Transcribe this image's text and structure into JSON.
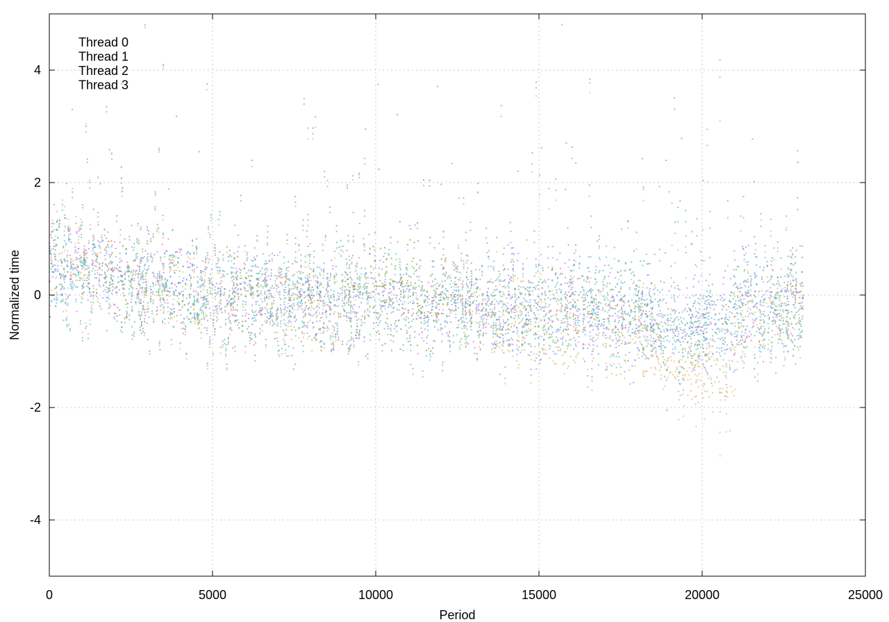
{
  "chart_data": {
    "type": "scatter",
    "title": "",
    "xlabel": "Period",
    "ylabel": "Normalized time",
    "xlim": [
      0,
      25000
    ],
    "ylim": [
      -5,
      5
    ],
    "xticks": [
      0,
      5000,
      10000,
      15000,
      20000,
      25000
    ],
    "yticks": [
      -4,
      -2,
      0,
      2,
      4
    ],
    "grid": true,
    "legend": "top-left",
    "x_extent": [
      0,
      23100
    ],
    "series": [
      {
        "name": "Thread 0",
        "color": "#9b59d6",
        "trend": [
          [
            0,
            0.6
          ],
          [
            2000,
            0.3
          ],
          [
            4000,
            0.1
          ],
          [
            6000,
            0.0
          ],
          [
            8000,
            -0.1
          ],
          [
            10000,
            0.0
          ],
          [
            12000,
            -0.1
          ],
          [
            14000,
            -0.3
          ],
          [
            16000,
            -0.2
          ],
          [
            18000,
            -0.4
          ],
          [
            19500,
            -0.6
          ],
          [
            21000,
            -0.3
          ],
          [
            23000,
            -0.2
          ]
        ]
      },
      {
        "name": "Thread 1",
        "color": "#2aa57a",
        "trend": [
          [
            0,
            0.5
          ],
          [
            2000,
            0.3
          ],
          [
            4000,
            0.1
          ],
          [
            6000,
            0.0
          ],
          [
            8000,
            0.0
          ],
          [
            10000,
            0.0
          ],
          [
            12000,
            -0.1
          ],
          [
            14000,
            -0.2
          ],
          [
            16000,
            -0.1
          ],
          [
            18000,
            -0.2
          ],
          [
            19500,
            -0.7
          ],
          [
            21000,
            -0.2
          ],
          [
            23000,
            -0.1
          ]
        ]
      },
      {
        "name": "Thread 2",
        "color": "#3ba3e0",
        "trend": [
          [
            0,
            0.5
          ],
          [
            2000,
            0.2
          ],
          [
            4000,
            0.1
          ],
          [
            6000,
            -0.1
          ],
          [
            8000,
            -0.1
          ],
          [
            10000,
            -0.1
          ],
          [
            12000,
            -0.2
          ],
          [
            14000,
            -0.4
          ],
          [
            16000,
            -0.3
          ],
          [
            18000,
            -0.4
          ],
          [
            19500,
            -0.9
          ],
          [
            21000,
            -0.6
          ],
          [
            23000,
            -0.3
          ]
        ]
      },
      {
        "name": "Thread 3",
        "color": "#d9a62f",
        "trend": [
          [
            0,
            0.7
          ],
          [
            2000,
            0.3
          ],
          [
            4000,
            0.0
          ],
          [
            6000,
            -0.1
          ],
          [
            8000,
            -0.2
          ],
          [
            10000,
            0.0
          ],
          [
            12000,
            -0.1
          ],
          [
            14000,
            -0.5
          ],
          [
            16000,
            -0.5
          ],
          [
            18000,
            -0.5
          ],
          [
            19000,
            -1.3
          ],
          [
            20000,
            -1.4
          ],
          [
            20800,
            -1.5
          ],
          [
            21200,
            -0.4
          ],
          [
            23000,
            -0.3
          ]
        ]
      }
    ]
  }
}
